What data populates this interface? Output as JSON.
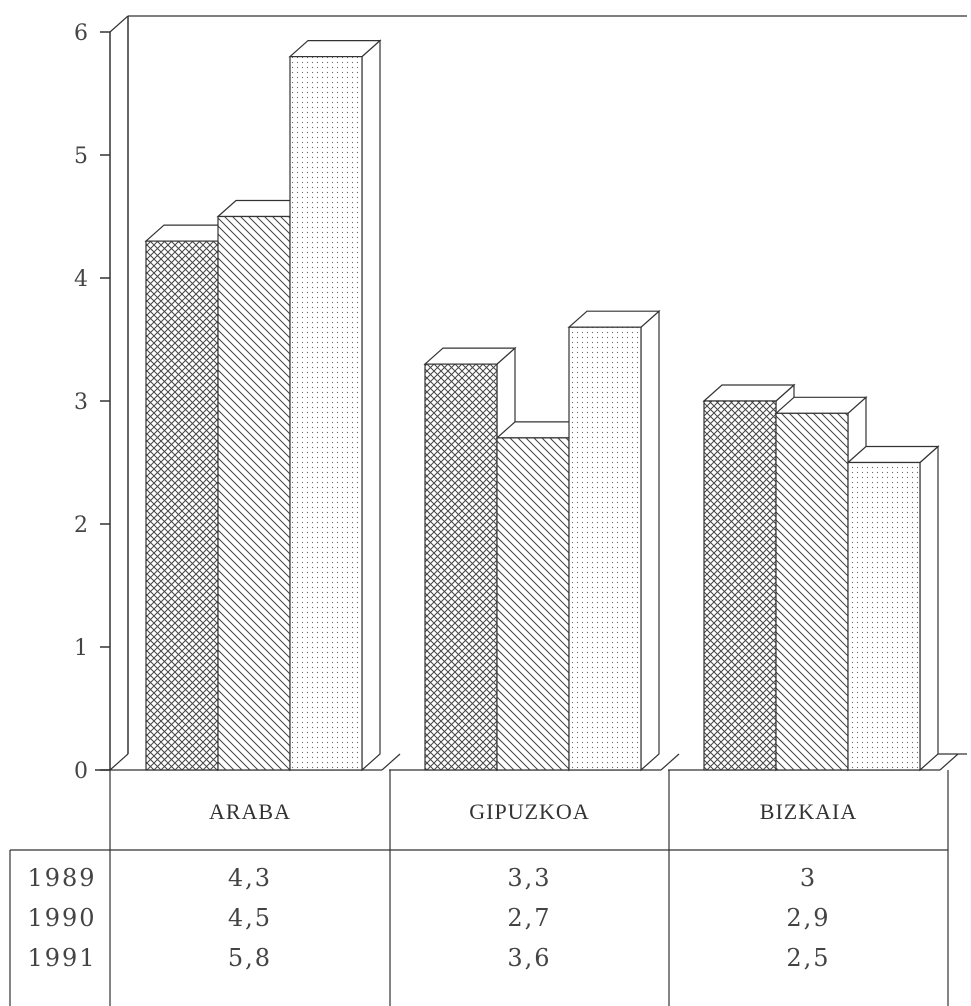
{
  "chart_data": {
    "type": "bar",
    "title": "",
    "xlabel": "",
    "ylabel": "",
    "ylim": [
      0,
      6
    ],
    "yticks": [
      0,
      1,
      2,
      3,
      4,
      5,
      6
    ],
    "categories": [
      "ARABA",
      "GIPUZKOA",
      "BIZKAIA"
    ],
    "series": [
      {
        "name": "1989",
        "values": [
          4.3,
          3.3,
          3.0
        ],
        "value_labels": [
          "4,3",
          "3,3",
          "3"
        ],
        "pattern": "crosshatch"
      },
      {
        "name": "1990",
        "values": [
          4.5,
          2.7,
          2.9
        ],
        "value_labels": [
          "4,5",
          "2,7",
          "2,9"
        ],
        "pattern": "diagonal"
      },
      {
        "name": "1991",
        "values": [
          5.8,
          3.6,
          2.5
        ],
        "value_labels": [
          "5,8",
          "3,6",
          "2,5"
        ],
        "pattern": "dots"
      }
    ],
    "style": "3d-bars-with-data-table",
    "grid": false,
    "colors": {
      "ink": "#333333",
      "background": "#ffffff"
    }
  }
}
